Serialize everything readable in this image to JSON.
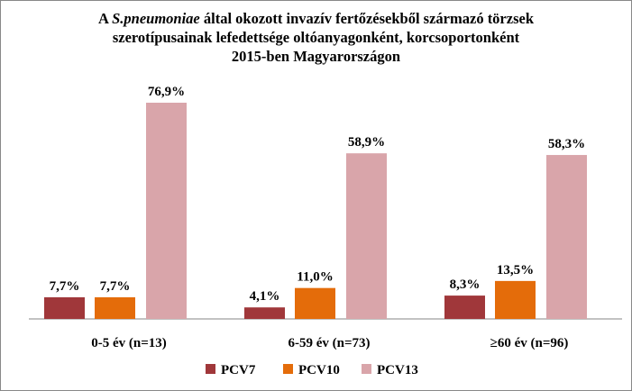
{
  "title": {
    "prefix": "A ",
    "italic": "S.pneumoniae",
    "rest": " által okozott invazív fertőzésekből származó törzsek",
    "line2": "szerotípusainak lefedettsége oltóanyagonként, korcsoportonként",
    "line3": "2015-ben Magyarországon"
  },
  "chart_data": {
    "type": "bar",
    "title": "A S.pneumoniae által okozott invazív fertőzésekből származó törzsek szerotípusainak lefedettsége oltóanyagonként, korcsoportonként 2015-ben Magyarországon",
    "categories": [
      "0-5 év (n=13)",
      "6-59 év (n=73)",
      "≥60 év (n=96)"
    ],
    "series": [
      {
        "name": "PCV7",
        "color": "#A0373A",
        "values": [
          7.7,
          4.1,
          8.3
        ],
        "labels": [
          "7,7%",
          "4,1%",
          "8,3%"
        ]
      },
      {
        "name": "PCV10",
        "color": "#E46C0A",
        "values": [
          7.7,
          11.0,
          13.5
        ],
        "labels": [
          "7,7%",
          "11,0%",
          "13,5%"
        ]
      },
      {
        "name": "PCV13",
        "color": "#D9A5AA",
        "values": [
          76.9,
          58.9,
          58.3
        ],
        "labels": [
          "76,9%",
          "58,9%",
          "58,3%"
        ]
      }
    ],
    "ylim": [
      0,
      76.9
    ],
    "grid": false,
    "legend_position": "bottom"
  }
}
